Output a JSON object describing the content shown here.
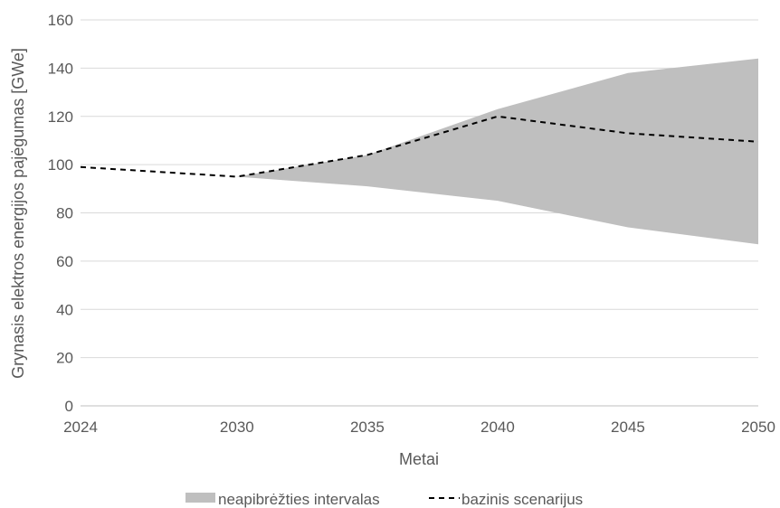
{
  "chart_data": {
    "type": "area",
    "xlabel": "Metai",
    "ylabel": "Grynasis elektros energijos pajėgumas [GWe]",
    "x": [
      2024,
      2030,
      2035,
      2040,
      2045,
      2050
    ],
    "x_ticks": [
      "2024",
      "2030",
      "2035",
      "2040",
      "2045",
      "2050"
    ],
    "y_ticks": [
      "0",
      "20",
      "40",
      "60",
      "80",
      "100",
      "120",
      "140",
      "160"
    ],
    "ylim": [
      0,
      160
    ],
    "grid": true,
    "legend_position": "bottom",
    "series": [
      {
        "name": "neapibrėžties intervalas",
        "kind": "band",
        "x": [
          2030,
          2035,
          2040,
          2045,
          2050
        ],
        "lower": [
          95,
          91,
          85,
          74,
          67
        ],
        "upper": [
          95,
          104,
          123,
          138,
          144
        ],
        "color": "#bfbfbf"
      },
      {
        "name": "bazinis scenarijus",
        "kind": "dashed-line",
        "x": [
          2024,
          2030,
          2035,
          2040,
          2045,
          2050
        ],
        "values": [
          99,
          95,
          104,
          120,
          113,
          109.5
        ],
        "color": "#000000"
      }
    ]
  }
}
